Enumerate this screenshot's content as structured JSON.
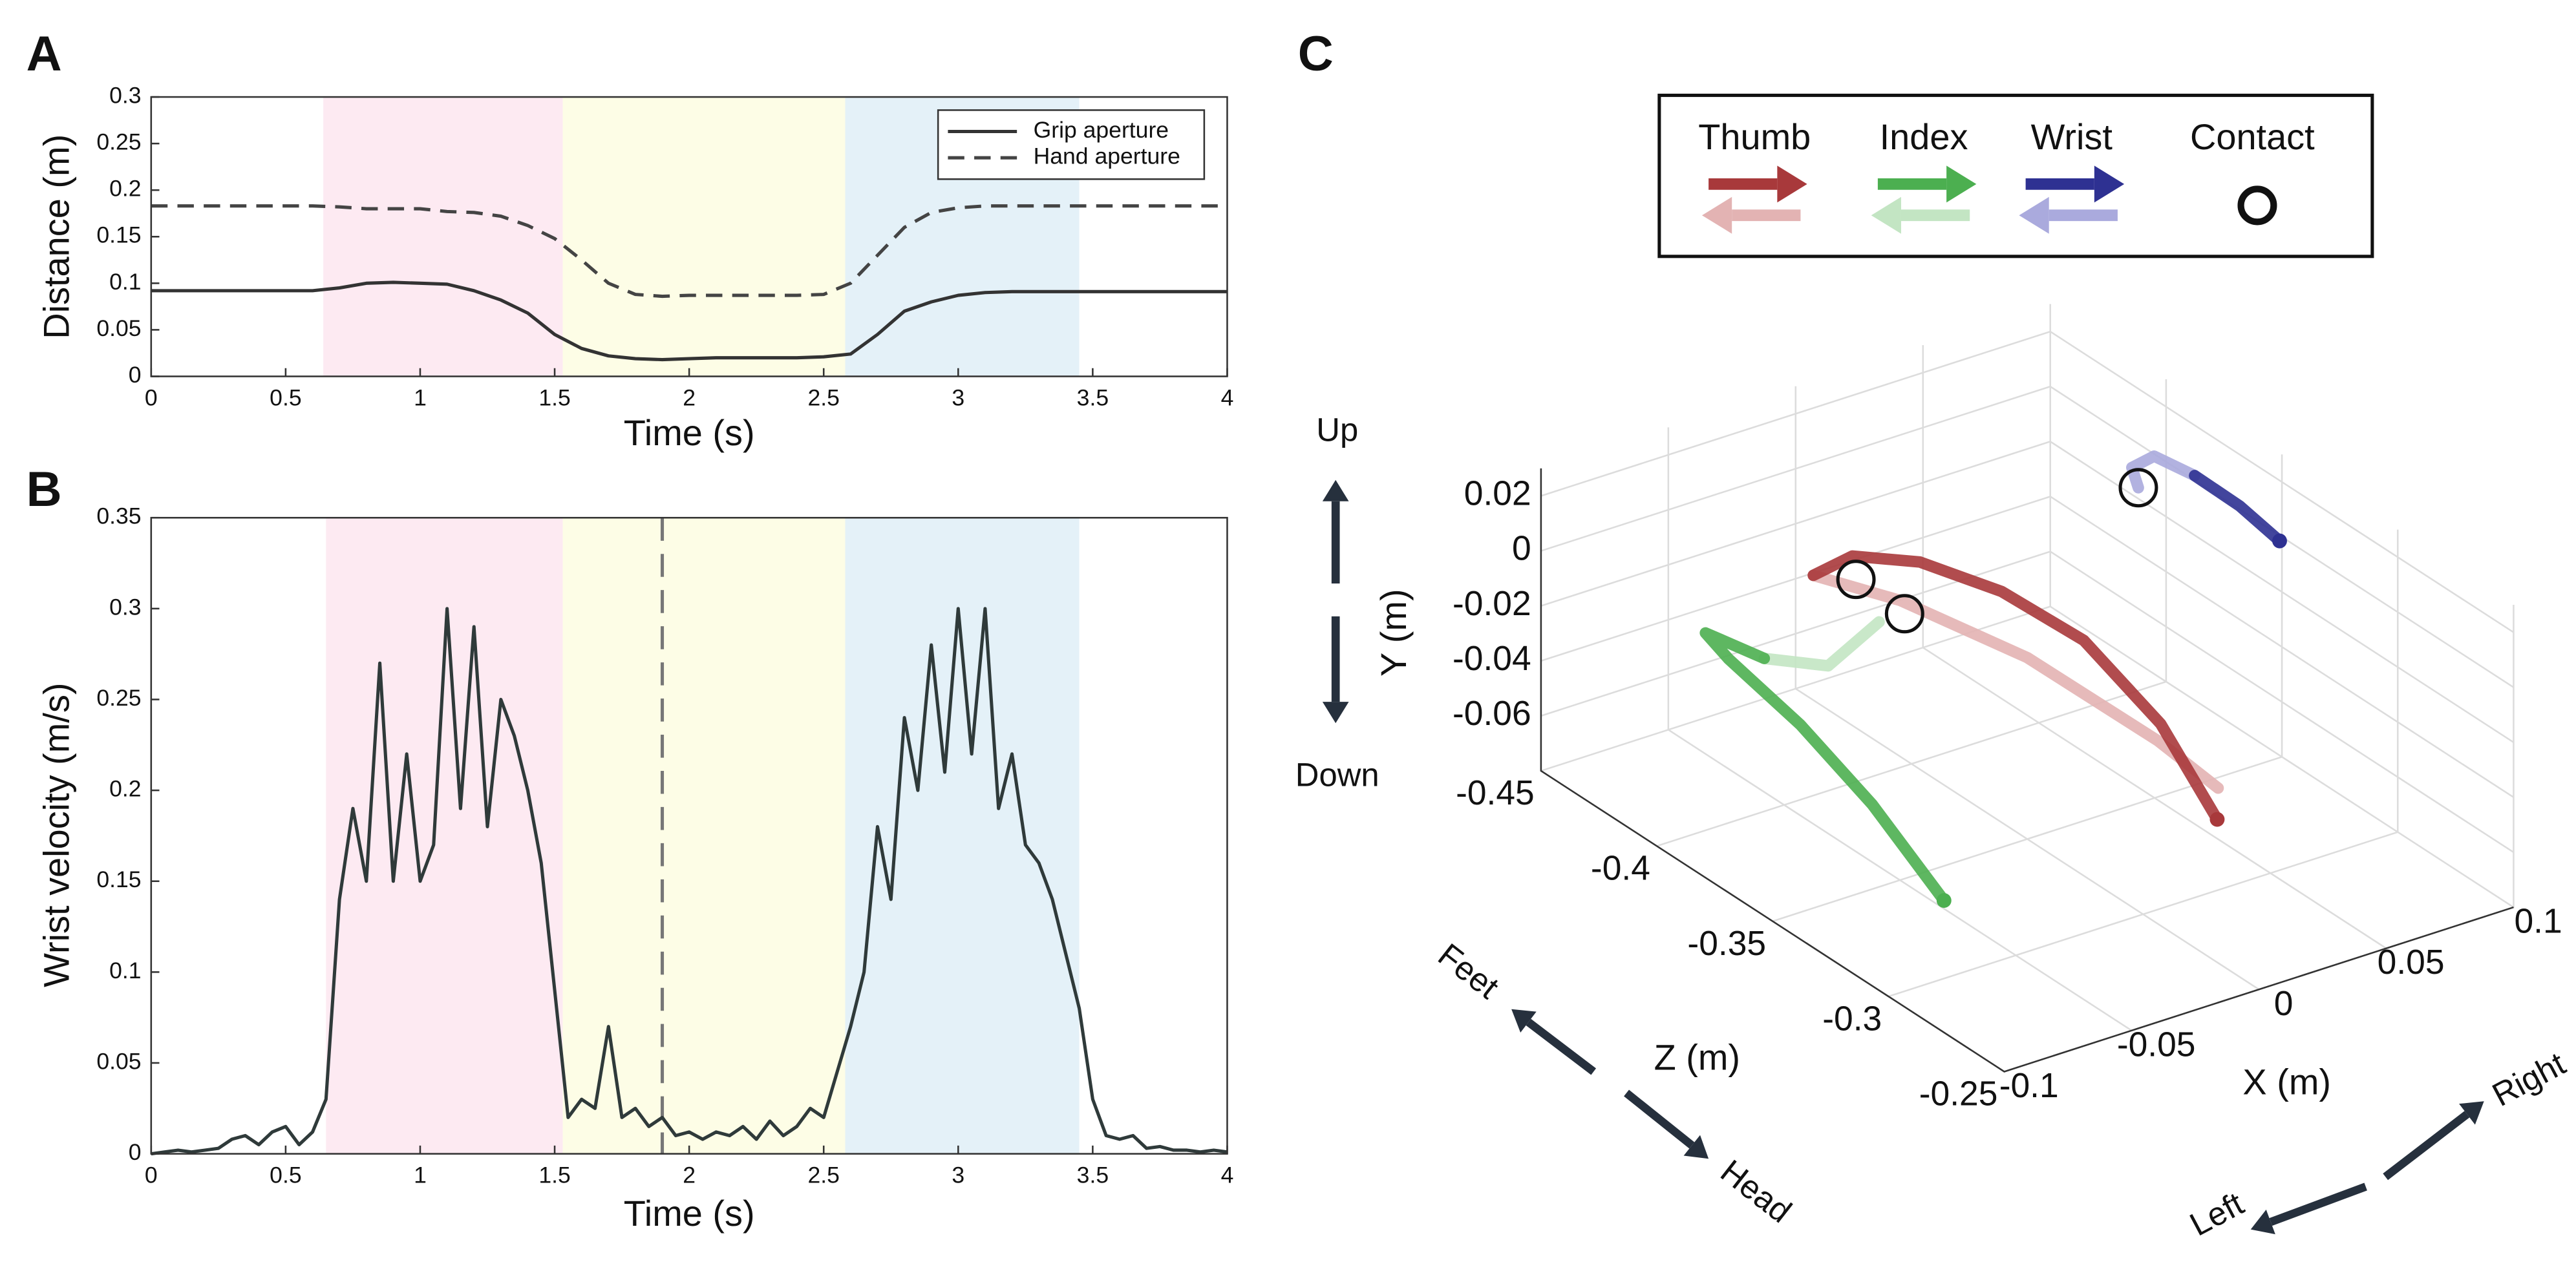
{
  "chart_data": [
    {
      "type": "line",
      "label": "A",
      "xlabel": "Time (s)",
      "ylabel": "Distance (m)",
      "xlim": [
        0,
        4
      ],
      "ylim": [
        0,
        0.3
      ],
      "xticks": [
        0,
        0.5,
        1,
        1.5,
        2,
        2.5,
        3,
        3.5,
        4
      ],
      "yticks": [
        0,
        0.05,
        0.1,
        0.15,
        0.2,
        0.25,
        0.3
      ],
      "legend": "upper right",
      "spans": [
        {
          "start": 0.64,
          "end": 1.53,
          "color": "#fdeaf2"
        },
        {
          "start": 1.53,
          "end": 2.58,
          "color": "#fdfde6"
        },
        {
          "start": 2.58,
          "end": 3.45,
          "color": "#e4f1f8"
        }
      ],
      "x": [
        0,
        0.1,
        0.2,
        0.3,
        0.4,
        0.5,
        0.6,
        0.7,
        0.8,
        0.9,
        1,
        1.1,
        1.2,
        1.3,
        1.4,
        1.5,
        1.6,
        1.7,
        1.8,
        1.9,
        2,
        2.1,
        2.2,
        2.3,
        2.4,
        2.5,
        2.6,
        2.7,
        2.8,
        2.9,
        3,
        3.1,
        3.2,
        3.3,
        3.4,
        3.5,
        3.6,
        3.7,
        3.8,
        3.9,
        4
      ],
      "series": [
        {
          "name": "Grip aperture",
          "color": "#333333",
          "dash": false,
          "values": [
            0.092,
            0.092,
            0.092,
            0.092,
            0.092,
            0.092,
            0.092,
            0.095,
            0.1,
            0.101,
            0.1,
            0.099,
            0.092,
            0.082,
            0.068,
            0.045,
            0.03,
            0.022,
            0.019,
            0.018,
            0.019,
            0.02,
            0.02,
            0.02,
            0.02,
            0.021,
            0.024,
            0.045,
            0.07,
            0.08,
            0.087,
            0.09,
            0.091,
            0.091,
            0.091,
            0.091,
            0.091,
            0.091,
            0.091,
            0.091,
            0.091
          ]
        },
        {
          "name": "Hand aperture",
          "color": "#444444",
          "dash": true,
          "values": [
            0.183,
            0.183,
            0.183,
            0.183,
            0.183,
            0.183,
            0.183,
            0.182,
            0.18,
            0.18,
            0.18,
            0.177,
            0.176,
            0.172,
            0.162,
            0.148,
            0.125,
            0.1,
            0.088,
            0.086,
            0.087,
            0.087,
            0.087,
            0.087,
            0.087,
            0.088,
            0.1,
            0.13,
            0.16,
            0.176,
            0.181,
            0.183,
            0.183,
            0.183,
            0.183,
            0.183,
            0.183,
            0.183,
            0.183,
            0.183,
            0.183
          ]
        }
      ]
    },
    {
      "type": "line",
      "label": "B",
      "xlabel": "Time (s)",
      "ylabel": "Wrist velocity (m/s)",
      "xlim": [
        0,
        4
      ],
      "ylim": [
        0,
        0.35
      ],
      "xticks": [
        0,
        0.5,
        1,
        1.5,
        2,
        2.5,
        3,
        3.5,
        4
      ],
      "yticks": [
        0,
        0.05,
        0.1,
        0.15,
        0.2,
        0.25,
        0.3,
        0.35
      ],
      "spans": [
        {
          "start": 0.65,
          "end": 1.53,
          "color": "#fdeaf2"
        },
        {
          "start": 1.53,
          "end": 2.58,
          "color": "#fdfde6"
        },
        {
          "start": 2.58,
          "end": 3.45,
          "color": "#e4f1f8"
        }
      ],
      "vline": 1.9,
      "x": [
        0,
        0.05,
        0.1,
        0.15,
        0.2,
        0.25,
        0.3,
        0.35,
        0.4,
        0.45,
        0.5,
        0.55,
        0.6,
        0.65,
        0.7,
        0.75,
        0.8,
        0.85,
        0.9,
        0.95,
        1,
        1.05,
        1.1,
        1.15,
        1.2,
        1.25,
        1.3,
        1.35,
        1.4,
        1.45,
        1.5,
        1.55,
        1.6,
        1.65,
        1.7,
        1.75,
        1.8,
        1.85,
        1.9,
        1.95,
        2,
        2.05,
        2.1,
        2.15,
        2.2,
        2.25,
        2.3,
        2.35,
        2.4,
        2.45,
        2.5,
        2.55,
        2.6,
        2.65,
        2.7,
        2.75,
        2.8,
        2.85,
        2.9,
        2.95,
        3,
        3.05,
        3.1,
        3.15,
        3.2,
        3.25,
        3.3,
        3.35,
        3.4,
        3.45,
        3.5,
        3.55,
        3.6,
        3.65,
        3.7,
        3.75,
        3.8,
        3.85,
        3.9,
        3.95,
        4
      ],
      "series": [
        {
          "color": "#2f3a3a",
          "dash": false,
          "values": [
            0,
            0.001,
            0.002,
            0.001,
            0.002,
            0.003,
            0.008,
            0.01,
            0.005,
            0.012,
            0.015,
            0.005,
            0.012,
            0.03,
            0.14,
            0.19,
            0.15,
            0.27,
            0.15,
            0.22,
            0.15,
            0.17,
            0.3,
            0.19,
            0.29,
            0.18,
            0.25,
            0.23,
            0.2,
            0.16,
            0.09,
            0.02,
            0.03,
            0.025,
            0.07,
            0.02,
            0.025,
            0.015,
            0.02,
            0.01,
            0.012,
            0.008,
            0.012,
            0.01,
            0.015,
            0.008,
            0.018,
            0.01,
            0.015,
            0.025,
            0.02,
            0.045,
            0.07,
            0.1,
            0.18,
            0.14,
            0.24,
            0.2,
            0.28,
            0.21,
            0.3,
            0.22,
            0.3,
            0.19,
            0.22,
            0.17,
            0.16,
            0.14,
            0.11,
            0.08,
            0.03,
            0.01,
            0.008,
            0.01,
            0.003,
            0.004,
            0.002,
            0.002,
            0.001,
            0.002,
            0.001
          ]
        }
      ]
    },
    {
      "type": "line3d",
      "label": "C",
      "xlabel": "X (m)",
      "ylabel": "Y (m)",
      "zlabel": "Z (m)",
      "xlim": [
        -0.1,
        0.1
      ],
      "ylim": [
        -0.08,
        0.03
      ],
      "zlim": [
        -0.45,
        -0.25
      ],
      "xticks": [
        -0.1,
        -0.05,
        0,
        0.05,
        0.1
      ],
      "yticks": [
        -0.06,
        -0.04,
        -0.02,
        0,
        0.02
      ],
      "zticks": [
        -0.45,
        -0.4,
        -0.35,
        -0.3,
        -0.25
      ],
      "grid": true,
      "series": [
        {
          "name": "Thumb",
          "color": "#a8393b",
          "return_color": "#e3b3b3",
          "out": {
            "x": [
              0.02,
              0.016,
              0.004,
              -0.01,
              -0.024,
              -0.036,
              -0.044
            ],
            "y": [
              -0.046,
              -0.021,
              0.002,
              0.013,
              0.017,
              0.014,
              0.005
            ],
            "z": [
              -0.29,
              -0.31,
              -0.33,
              -0.35,
              -0.37,
              -0.386,
              -0.394
            ]
          },
          "back": {
            "x": [
              -0.044,
              -0.028,
              0,
              0.024,
              0.024
            ],
            "y": [
              0.005,
              0.002,
              -0.014,
              -0.035,
              -0.038
            ],
            "z": [
              -0.394,
              -0.374,
              -0.35,
              -0.32,
              -0.294
            ]
          }
        },
        {
          "name": "Index",
          "color": "#4caf50",
          "return_color": "#c3e5c3",
          "out": {
            "x": [
              -0.06,
              -0.07,
              -0.08,
              -0.09,
              -0.09,
              -0.076
            ],
            "y": [
              -0.068,
              -0.041,
              -0.02,
              -0.004,
              0,
              -0.008
            ],
            "z": [
              -0.32,
              -0.34,
              -0.36,
              -0.38,
              -0.39,
              -0.38
            ]
          },
          "back": {
            "x": [
              -0.076,
              -0.06,
              -0.04
            ],
            "y": [
              -0.008,
              -0.01,
              0
            ],
            "z": [
              -0.38,
              -0.37,
              -0.37
            ]
          }
        },
        {
          "name": "Wrist",
          "color": "#2e3192",
          "return_color": "#aaaadd",
          "out": {
            "x": [
              0.1,
              0.097,
              0.093
            ],
            "y": [
              -0.002,
              0.004,
              0.008
            ],
            "z": [
              -0.351,
              -0.365,
              -0.38
            ]
          },
          "back": {
            "x": [
              0.093,
              0.088,
              0.082,
              0.08
            ],
            "y": [
              0.008,
              0.01,
              0.006,
              0.002
            ],
            "z": [
              -0.38,
              -0.392,
              -0.395,
              -0.39
            ]
          }
        }
      ],
      "contact": {
        "name": "Contact",
        "x": [
          0.08,
          -0.04,
          -0.03
        ],
        "y": [
          0.002,
          0.01,
          0
        ],
        "z": [
          -0.39,
          -0.38,
          -0.37
        ]
      },
      "annotations": {
        "up": "Up",
        "down": "Down",
        "feet": "Feet",
        "head": "Head",
        "left": "Left",
        "right": "Right"
      }
    }
  ]
}
